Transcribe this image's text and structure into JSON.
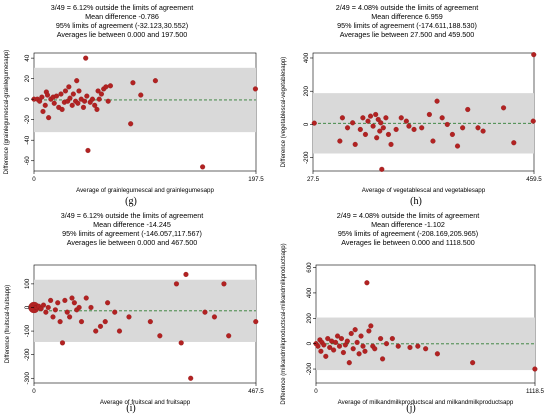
{
  "chart_data": [
    {
      "type": "scatter",
      "panel_label": "(g)",
      "header": {
        "line1": "3/49 =   6.12% outside the limits of agreement",
        "line2": "Mean difference -0.786",
        "line3": "95% limits of agreement (-32.123,30.552)",
        "line4": "Averages lie between 0.000 and 197.500"
      },
      "xlabel": "Average of grainlegumescal and grainlegumesapp",
      "ylabel": "Difference (grainlegumescal-grainlegumesapp)",
      "xlim": [
        0,
        197.5
      ],
      "ylim": [
        -70,
        45
      ],
      "xticks": [
        0,
        197.5
      ],
      "xtick_labels": [
        "0",
        "197.5"
      ],
      "yticks": [
        -60,
        -40,
        -20,
        0,
        20,
        40
      ],
      "ytick_labels": [
        "-60",
        "-40",
        "-20",
        "0",
        "20",
        "40"
      ],
      "mean_diff": -0.786,
      "loa": [
        -32.123,
        30.552
      ],
      "points": [
        [
          0,
          0
        ],
        [
          3,
          0
        ],
        [
          5,
          -2
        ],
        [
          7,
          2
        ],
        [
          8,
          -12
        ],
        [
          10,
          -6
        ],
        [
          11,
          7
        ],
        [
          12,
          4
        ],
        [
          13,
          -18
        ],
        [
          15,
          0
        ],
        [
          17,
          2
        ],
        [
          18,
          -4
        ],
        [
          20,
          3
        ],
        [
          22,
          -8
        ],
        [
          24,
          5
        ],
        [
          25,
          -10
        ],
        [
          27,
          -3
        ],
        [
          28,
          8
        ],
        [
          30,
          -2
        ],
        [
          31,
          12
        ],
        [
          32,
          1
        ],
        [
          34,
          -6
        ],
        [
          35,
          5
        ],
        [
          37,
          -2
        ],
        [
          38,
          18
        ],
        [
          39,
          -4
        ],
        [
          40,
          8
        ],
        [
          42,
          0
        ],
        [
          44,
          -8
        ],
        [
          45,
          -2
        ],
        [
          46,
          40
        ],
        [
          47,
          3
        ],
        [
          48,
          -50
        ],
        [
          50,
          -3
        ],
        [
          52,
          0
        ],
        [
          54,
          -6
        ],
        [
          56,
          -10
        ],
        [
          57,
          8
        ],
        [
          58,
          0
        ],
        [
          60,
          5
        ],
        [
          62,
          10
        ],
        [
          64,
          12
        ],
        [
          66,
          -2
        ],
        [
          68,
          13
        ],
        [
          86,
          -24
        ],
        [
          88,
          16
        ],
        [
          95,
          4
        ],
        [
          108,
          18
        ],
        [
          150,
          -66
        ],
        [
          197,
          10
        ]
      ],
      "grid": false
    },
    {
      "type": "scatter",
      "panel_label": "(h)",
      "header": {
        "line1": "2/49 =   4.08% outside the limits of agreement",
        "line2": "Mean difference  6.959",
        "line3": "95% limits of agreement (-174.611,188.530)",
        "line4": "Averages lie between 27.500 and 459.500"
      },
      "xlabel": "Average of vegetablescal and vegetablesapp",
      "ylabel": "Difference (vegetablescal-vegetablesapp)",
      "xlim": [
        27.5,
        459.5
      ],
      "ylim": [
        -280,
        430
      ],
      "xticks": [
        27.5,
        459.5
      ],
      "xtick_labels": [
        "27.5",
        "459.5"
      ],
      "yticks": [
        -200,
        0,
        200,
        400
      ],
      "ytick_labels": [
        "-200",
        "0",
        "200",
        "400"
      ],
      "mean_diff": 6.959,
      "loa": [
        -174.611,
        188.53
      ],
      "points": [
        [
          30,
          8
        ],
        [
          80,
          -100
        ],
        [
          85,
          40
        ],
        [
          95,
          -20
        ],
        [
          105,
          10
        ],
        [
          110,
          -120
        ],
        [
          120,
          -30
        ],
        [
          125,
          40
        ],
        [
          130,
          -60
        ],
        [
          135,
          20
        ],
        [
          140,
          50
        ],
        [
          145,
          -10
        ],
        [
          150,
          60
        ],
        [
          152,
          -80
        ],
        [
          155,
          30
        ],
        [
          158,
          -40
        ],
        [
          160,
          10
        ],
        [
          162,
          -270
        ],
        [
          165,
          -20
        ],
        [
          170,
          40
        ],
        [
          175,
          -60
        ],
        [
          180,
          -120
        ],
        [
          190,
          -30
        ],
        [
          200,
          40
        ],
        [
          210,
          20
        ],
        [
          215,
          -10
        ],
        [
          225,
          -30
        ],
        [
          240,
          -20
        ],
        [
          255,
          60
        ],
        [
          262,
          -100
        ],
        [
          270,
          140
        ],
        [
          280,
          40
        ],
        [
          290,
          0
        ],
        [
          300,
          -60
        ],
        [
          310,
          -130
        ],
        [
          320,
          -20
        ],
        [
          330,
          90
        ],
        [
          350,
          -20
        ],
        [
          360,
          -40
        ],
        [
          400,
          100
        ],
        [
          420,
          -110
        ],
        [
          458,
          20
        ],
        [
          459,
          420
        ]
      ],
      "grid": false
    },
    {
      "type": "scatter",
      "panel_label": "(i)",
      "header": {
        "line1": "3/49 =   6.12% outside the limits of agreement",
        "line2": "Mean difference -14.245",
        "line3": "95% limits of agreement (-146.057,117.567)",
        "line4": "Averages lie between 0.000 and 467.500"
      },
      "xlabel": "Average of fruitscal and fruitsapp",
      "ylabel": "Difference (fruitscal-fruitsapp)",
      "xlim": [
        0,
        467.5
      ],
      "ylim": [
        -320,
        180
      ],
      "xticks": [
        0,
        467.5
      ],
      "xtick_labels": [
        "0",
        "467.5"
      ],
      "yticks": [
        -300,
        -200,
        -100,
        0,
        100
      ],
      "ytick_labels": [
        "-300",
        "-200",
        "-100",
        "0",
        "100"
      ],
      "mean_diff": -14.245,
      "loa": [
        -146.057,
        117.567
      ],
      "points": [
        [
          0,
          0
        ],
        [
          3,
          0
        ],
        [
          6,
          0
        ],
        [
          10,
          5
        ],
        [
          15,
          -5
        ],
        [
          20,
          10
        ],
        [
          25,
          -20
        ],
        [
          30,
          0
        ],
        [
          35,
          30
        ],
        [
          40,
          -40
        ],
        [
          45,
          -10
        ],
        [
          50,
          20
        ],
        [
          55,
          -60
        ],
        [
          60,
          -150
        ],
        [
          65,
          30
        ],
        [
          70,
          -20
        ],
        [
          75,
          -40
        ],
        [
          80,
          40
        ],
        [
          85,
          20
        ],
        [
          90,
          -10
        ],
        [
          95,
          0
        ],
        [
          100,
          -60
        ],
        [
          110,
          40
        ],
        [
          120,
          0
        ],
        [
          130,
          -100
        ],
        [
          140,
          -80
        ],
        [
          150,
          -60
        ],
        [
          155,
          20
        ],
        [
          170,
          -20
        ],
        [
          180,
          -100
        ],
        [
          200,
          -40
        ],
        [
          245,
          -60
        ],
        [
          265,
          -120
        ],
        [
          300,
          100
        ],
        [
          310,
          -150
        ],
        [
          320,
          140
        ],
        [
          330,
          -300
        ],
        [
          360,
          -20
        ],
        [
          380,
          -40
        ],
        [
          400,
          100
        ],
        [
          410,
          -120
        ],
        [
          467,
          -60
        ]
      ],
      "grid": false
    },
    {
      "type": "scatter",
      "panel_label": "(j)",
      "header": {
        "line1": "2/49 =   4.08% outside the limits of agreement",
        "line2": "Mean difference -1.102",
        "line3": "95% limits of agreement (-208.169,205.965)",
        "line4": "Averages lie between 0.000 and 1118.500"
      },
      "xlabel": "Average of milkandmilkproductscal and milkandmilkproductsapp",
      "ylabel": "Difference (milkandmilkproductscal-milkandmilkproductsapp)",
      "xlim": [
        0,
        1118.5
      ],
      "ylim": [
        -310,
        620
      ],
      "xticks": [
        0,
        1118.5
      ],
      "xtick_labels": [
        "0",
        "1118.5"
      ],
      "yticks": [
        -200,
        0,
        200,
        400,
        600
      ],
      "ytick_labels": [
        "-200",
        "0",
        "200",
        "400",
        "600"
      ],
      "mean_diff": -1.102,
      "loa": [
        -208.169,
        205.965
      ],
      "points": [
        [
          0,
          0
        ],
        [
          10,
          -20
        ],
        [
          20,
          30
        ],
        [
          25,
          -60
        ],
        [
          30,
          10
        ],
        [
          40,
          -10
        ],
        [
          50,
          -100
        ],
        [
          60,
          40
        ],
        [
          70,
          -30
        ],
        [
          80,
          20
        ],
        [
          90,
          -50
        ],
        [
          100,
          10
        ],
        [
          110,
          60
        ],
        [
          120,
          -20
        ],
        [
          130,
          40
        ],
        [
          140,
          -70
        ],
        [
          150,
          -10
        ],
        [
          160,
          20
        ],
        [
          170,
          -150
        ],
        [
          180,
          80
        ],
        [
          190,
          -40
        ],
        [
          200,
          110
        ],
        [
          210,
          10
        ],
        [
          220,
          -80
        ],
        [
          230,
          60
        ],
        [
          240,
          -20
        ],
        [
          250,
          -60
        ],
        [
          260,
          480
        ],
        [
          270,
          100
        ],
        [
          280,
          140
        ],
        [
          290,
          -20
        ],
        [
          300,
          -40
        ],
        [
          330,
          40
        ],
        [
          340,
          -120
        ],
        [
          360,
          0
        ],
        [
          390,
          40
        ],
        [
          420,
          -20
        ],
        [
          480,
          -30
        ],
        [
          520,
          -20
        ],
        [
          560,
          -40
        ],
        [
          620,
          -80
        ],
        [
          800,
          -150
        ],
        [
          1118,
          -200
        ]
      ],
      "grid": false
    }
  ]
}
